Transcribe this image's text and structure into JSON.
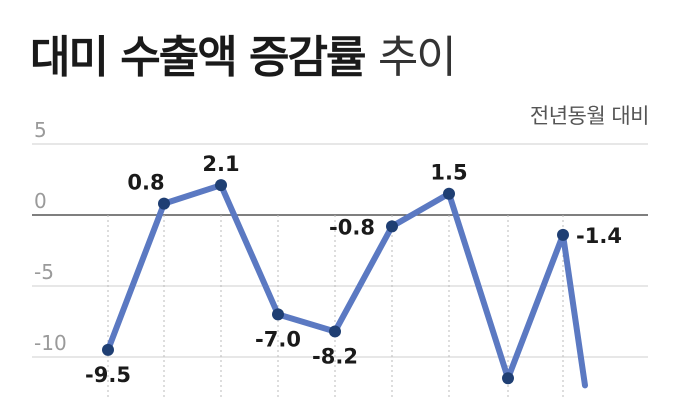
{
  "title": {
    "main": "대미 수출액 증감률",
    "sub": "추이"
  },
  "unit_label": "전년동월 대비",
  "chart_data": {
    "type": "line",
    "title": "대미 수출액 증감률 추이",
    "ylabel": "전년동월 대비",
    "y_ticks": [
      5,
      0,
      -5,
      -10
    ],
    "ylim": [
      -12.5,
      6
    ],
    "grid": true,
    "series": [
      {
        "values": [
          -9.5,
          0.8,
          2.1,
          -7.0,
          -8.2,
          -0.8,
          1.5,
          -11.5,
          -1.4,
          -12
        ],
        "labels": [
          "-9.5",
          "0.8",
          "2.1",
          "-7.0",
          "-8.2",
          "-0.8",
          "1.5",
          "",
          "-1.4",
          ""
        ]
      }
    ],
    "colors": {
      "line": "#5b79c2",
      "marker": "#1f3f73",
      "grid": "#cfcfcf",
      "axis": "#555555"
    }
  }
}
